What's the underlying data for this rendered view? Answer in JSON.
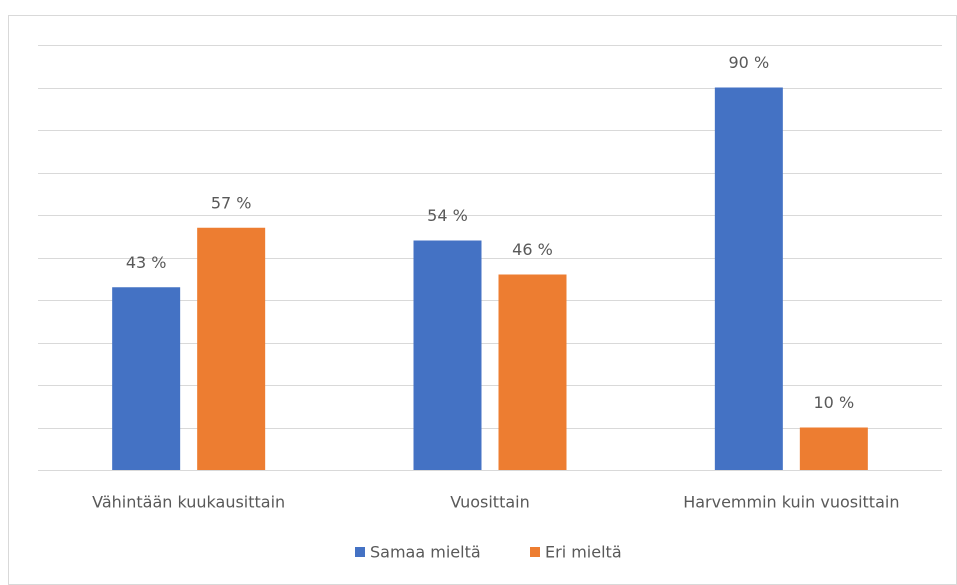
{
  "chart_data": {
    "type": "bar",
    "categories": [
      "Vähintään kuukausittain",
      "Vuosittain",
      "Harvemmin kuin vuosittain"
    ],
    "series": [
      {
        "name": "Samaa mieltä",
        "color": "#4472c4",
        "values": [
          43,
          54,
          90
        ],
        "value_labels": [
          "43 %",
          "54 %",
          "90 %"
        ]
      },
      {
        "name": "Eri mieltä",
        "color": "#ed7d31",
        "values": [
          57,
          46,
          10
        ],
        "value_labels": [
          "57 %",
          "46 %",
          "10 %"
        ]
      }
    ],
    "ylim": [
      0,
      100
    ],
    "yticks": [
      0,
      10,
      20,
      30,
      40,
      50,
      60,
      70,
      80,
      90,
      100
    ],
    "grid": true,
    "legend": "bottom"
  }
}
